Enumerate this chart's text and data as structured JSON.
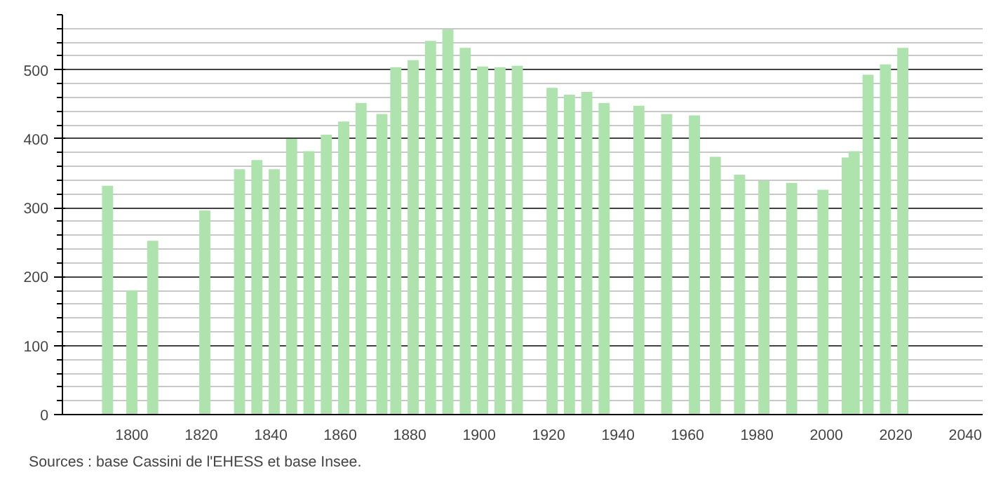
{
  "chart_data": {
    "type": "bar",
    "x": [
      1793,
      1800,
      1806,
      1821,
      1831,
      1836,
      1841,
      1846,
      1851,
      1856,
      1861,
      1866,
      1872,
      1876,
      1881,
      1886,
      1891,
      1896,
      1901,
      1906,
      1911,
      1921,
      1926,
      1931,
      1936,
      1946,
      1954,
      1962,
      1968,
      1975,
      1982,
      1990,
      1999,
      2006,
      2008,
      2012,
      2017,
      2022
    ],
    "values": [
      332,
      180,
      252,
      296,
      356,
      369,
      356,
      400,
      382,
      406,
      425,
      452,
      436,
      504,
      514,
      542,
      559,
      532,
      505,
      504,
      506,
      474,
      464,
      468,
      452,
      448,
      436,
      434,
      374,
      348,
      339,
      336,
      326,
      373,
      382,
      493,
      508,
      532
    ],
    "color": "#aee3ae",
    "xlim": [
      1780,
      2045
    ],
    "xticks": [
      1800,
      1820,
      1840,
      1860,
      1880,
      1900,
      1920,
      1940,
      1960,
      1980,
      2000,
      2020,
      2040
    ],
    "ylim": [
      0,
      580
    ],
    "yticks": [
      0,
      100,
      200,
      300,
      400,
      500
    ],
    "grid": "y",
    "annotations": [
      "Sources : base Cassini de l'EHESS et base Insee."
    ]
  }
}
